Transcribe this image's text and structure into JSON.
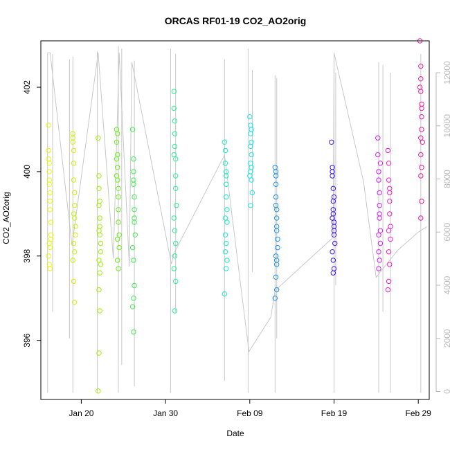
{
  "chart_data": {
    "type": "scatter",
    "title": "ORCAS RF01-19 CO2_AO2orig",
    "xlabel": "Date",
    "ylabel": "CO2_AO2orig",
    "x_tick_labels": [
      "Jan 20",
      "Jan 30",
      "Feb 09",
      "Feb 19",
      "Feb 29"
    ],
    "x_tick_values": [
      20,
      30,
      40,
      50,
      60
    ],
    "xlim": [
      15.2,
      61.3
    ],
    "y_ticks": [
      396,
      398,
      400,
      402
    ],
    "ylim": [
      394.6,
      403.1
    ],
    "right_axis_ticks": [
      0,
      2000,
      4000,
      6000,
      8000,
      10000,
      12000
    ],
    "right_axis_lim": [
      -300,
      13200
    ],
    "right_axis_color": "#b8b8b8",
    "grid": false,
    "line_series": {
      "color": "#c8c8c8",
      "path": [
        [
          16.0,
          12750
        ],
        [
          16.3,
          12750
        ],
        [
          18.9,
          5500
        ],
        [
          22.0,
          12750
        ],
        [
          23.8,
          5000
        ],
        [
          24.5,
          12750
        ],
        [
          25.7,
          4700
        ],
        [
          26.0,
          12400
        ],
        [
          30.7,
          4800
        ],
        [
          31.0,
          5200
        ],
        [
          37.0,
          8900
        ],
        [
          39.9,
          1500
        ],
        [
          42.5,
          2800
        ],
        [
          43.0,
          3800
        ],
        [
          49.9,
          5800
        ],
        [
          50.0,
          12750
        ],
        [
          53.5,
          7900
        ],
        [
          55.0,
          4300
        ],
        [
          57.5,
          5300
        ],
        [
          60.0,
          6000
        ],
        [
          61.0,
          6200
        ]
      ],
      "spikes": [
        {
          "x": 16.0,
          "low": -50,
          "high": 12750
        },
        {
          "x": 16.6,
          "low": 3000,
          "high": 12700
        },
        {
          "x": 18.6,
          "low": 2000,
          "high": 12500
        },
        {
          "x": 19.0,
          "low": -50,
          "high": 12600
        },
        {
          "x": 21.9,
          "low": -50,
          "high": 12800
        },
        {
          "x": 24.4,
          "low": -50,
          "high": 13000
        },
        {
          "x": 24.8,
          "low": 1000,
          "high": 12900
        },
        {
          "x": 26.3,
          "low": 200,
          "high": 12450
        },
        {
          "x": 30.6,
          "low": -50,
          "high": 12900
        },
        {
          "x": 31.2,
          "low": 3000,
          "high": 12700
        },
        {
          "x": 37.0,
          "low": 400,
          "high": 12500
        },
        {
          "x": 39.8,
          "low": -50,
          "high": 12900
        },
        {
          "x": 40.3,
          "low": 4500,
          "high": 12100
        },
        {
          "x": 43.0,
          "low": -50,
          "high": 11900
        },
        {
          "x": 43.2,
          "low": 2000,
          "high": 11800
        },
        {
          "x": 50.0,
          "low": -50,
          "high": 12750
        },
        {
          "x": 50.2,
          "low": 4000,
          "high": 12000
        },
        {
          "x": 55.3,
          "low": -50,
          "high": 12400
        },
        {
          "x": 55.8,
          "low": 3000,
          "high": 12300
        },
        {
          "x": 56.7,
          "low": -50,
          "high": 12000
        },
        {
          "x": 60.3,
          "low": -50,
          "high": 12700
        }
      ]
    },
    "series": [
      {
        "color": "#e8f800",
        "x": [
          16.1,
          16.1,
          16.1,
          16.2,
          16.2,
          16.2,
          16.3,
          16.3,
          16.3,
          16.4,
          16.4,
          16.4,
          16.2,
          16.3,
          16.1,
          16.2,
          16.3,
          16.2
        ],
        "values": [
          401.1,
          400.5,
          400.3,
          400.0,
          399.8,
          399.7,
          399.5,
          399.3,
          399.1,
          398.8,
          398.5,
          398.4,
          398.3,
          398.2,
          398.0,
          397.8,
          397.7,
          400.2
        ]
      },
      {
        "color": "#c8f400",
        "x": [
          19.0,
          19.0,
          19.1,
          19.1,
          19.1,
          19.2,
          19.2,
          19.2,
          19.3,
          19.3,
          19.1,
          19.2,
          19.0,
          19.1,
          19.2,
          19.0,
          19.1
        ],
        "values": [
          400.9,
          400.7,
          400.5,
          400.2,
          399.8,
          399.5,
          399.2,
          398.9,
          398.7,
          398.5,
          398.3,
          398.1,
          397.9,
          397.4,
          396.9,
          400.8,
          399.0
        ]
      },
      {
        "color": "#9cf000",
        "x": [
          22.0,
          22.1,
          22.1,
          22.1,
          22.2,
          22.2,
          22.2,
          22.3,
          22.3,
          22.1,
          22.2,
          22.1,
          22.2,
          22.1,
          22.0,
          22.2,
          22.1,
          22.3
        ],
        "values": [
          400.8,
          399.9,
          399.6,
          399.2,
          398.9,
          398.7,
          398.5,
          398.3,
          398.1,
          397.9,
          397.6,
          397.2,
          396.7,
          395.7,
          394.8,
          399.3,
          398.6,
          397.8
        ]
      },
      {
        "color": "#6cee18",
        "x": [
          24.2,
          24.2,
          24.3,
          24.3,
          24.3,
          24.4,
          24.4,
          24.4,
          24.5,
          24.5,
          24.3,
          24.4,
          24.3,
          24.2,
          24.4,
          24.3,
          24.2
        ],
        "values": [
          401.0,
          400.7,
          400.4,
          400.1,
          399.8,
          399.4,
          399.1,
          398.8,
          398.5,
          398.2,
          397.9,
          397.7,
          400.9,
          399.9,
          399.6,
          398.4,
          400.3
        ]
      },
      {
        "color": "#3cf050",
        "x": [
          26.1,
          26.2,
          26.2,
          26.2,
          26.3,
          26.3,
          26.3,
          26.4,
          26.1,
          26.2,
          26.3,
          26.2,
          26.1,
          26.2,
          26.3,
          26.2
        ],
        "values": [
          401.0,
          400.3,
          400.0,
          399.7,
          399.4,
          399.1,
          398.8,
          398.5,
          398.2,
          397.9,
          397.3,
          397.0,
          396.8,
          396.2,
          398.9,
          399.8
        ]
      },
      {
        "color": "#20f490",
        "x": [
          31.0,
          31.0,
          31.1,
          31.1,
          31.1,
          31.2,
          31.2,
          31.2,
          31.3,
          31.0,
          31.1,
          31.2,
          31.1,
          31.0,
          31.2,
          31.1,
          31.0
        ],
        "values": [
          401.9,
          401.5,
          401.2,
          400.9,
          400.6,
          400.3,
          399.9,
          399.6,
          399.2,
          398.9,
          398.6,
          398.3,
          398.0,
          397.7,
          397.4,
          396.7,
          400.4
        ]
      },
      {
        "color": "#10ecc8",
        "x": [
          37.0,
          37.1,
          37.1,
          37.2,
          37.2,
          37.2,
          37.3,
          37.3,
          37.1,
          37.2,
          37.1,
          37.3,
          37.2,
          37.0,
          37.2,
          37.1
        ],
        "values": [
          400.7,
          400.5,
          400.2,
          400.0,
          399.7,
          399.4,
          399.1,
          398.8,
          398.5,
          398.3,
          398.1,
          397.9,
          397.7,
          397.1,
          399.9,
          398.9
        ]
      },
      {
        "color": "#18e8f0",
        "x": [
          40.0,
          40.1,
          40.1,
          40.1,
          40.2,
          40.2,
          40.2,
          40.3,
          40.1,
          40.2,
          40.1,
          40.0,
          40.2,
          40.1
        ],
        "values": [
          401.3,
          401.1,
          400.9,
          400.6,
          400.4,
          400.1,
          399.8,
          399.5,
          399.2,
          400.7,
          400.0,
          399.9,
          401.0,
          400.2
        ]
      },
      {
        "color": "#1890f0",
        "x": [
          43.0,
          43.1,
          43.1,
          43.1,
          43.2,
          43.2,
          43.2,
          43.3,
          43.3,
          43.1,
          43.2,
          43.1,
          43.2,
          43.0,
          43.1,
          43.2,
          43.1,
          43.2
        ],
        "values": [
          400.1,
          399.9,
          399.7,
          399.4,
          399.1,
          398.9,
          398.6,
          398.4,
          398.2,
          398.0,
          397.8,
          397.5,
          397.2,
          397.0,
          399.2,
          398.7,
          400.0,
          397.9
        ]
      },
      {
        "color": "#3818f0",
        "x": [
          49.7,
          49.8,
          49.8,
          49.9,
          49.9,
          49.9,
          50.0,
          50.0,
          50.0,
          50.1,
          49.8,
          49.9,
          50.0,
          49.9,
          49.8,
          50.0,
          49.9,
          49.8,
          50.0
        ],
        "values": [
          400.7,
          400.1,
          399.9,
          399.6,
          399.3,
          399.0,
          398.8,
          398.6,
          398.5,
          398.3,
          398.1,
          397.9,
          397.7,
          397.6,
          398.9,
          398.7,
          399.1,
          400.0,
          399.4
        ]
      },
      {
        "color": "#d020f0",
        "x": [
          55.2,
          55.3,
          55.3,
          55.4,
          55.4,
          55.4,
          55.5,
          55.5,
          55.3,
          55.4,
          55.3,
          55.2,
          55.4,
          55.3,
          55.5
        ],
        "values": [
          400.4,
          400.0,
          399.8,
          399.5,
          399.2,
          398.9,
          398.6,
          398.3,
          398.1,
          397.9,
          397.7,
          400.8,
          399.0,
          398.5,
          400.2
        ]
      },
      {
        "color": "#f020c8",
        "x": [
          56.4,
          56.5,
          56.5,
          56.6,
          56.6,
          56.6,
          56.7,
          56.7,
          56.5,
          56.6,
          56.5,
          56.4,
          56.6,
          56.5
        ],
        "values": [
          400.5,
          400.2,
          399.8,
          399.6,
          399.3,
          399.0,
          398.7,
          398.4,
          398.1,
          397.8,
          397.4,
          397.2,
          399.5,
          398.6
        ]
      },
      {
        "color": "#f01898",
        "x": [
          60.2,
          60.3,
          60.3,
          60.3,
          60.4,
          60.4,
          60.4,
          60.5,
          60.3,
          60.4,
          60.3,
          60.4,
          60.3,
          60.2,
          60.4,
          60.3
        ],
        "values": [
          403.1,
          402.5,
          402.2,
          401.9,
          401.6,
          401.3,
          401.0,
          400.7,
          400.4,
          400.1,
          399.9,
          399.3,
          398.9,
          402.0,
          401.5,
          400.8
        ]
      }
    ]
  }
}
